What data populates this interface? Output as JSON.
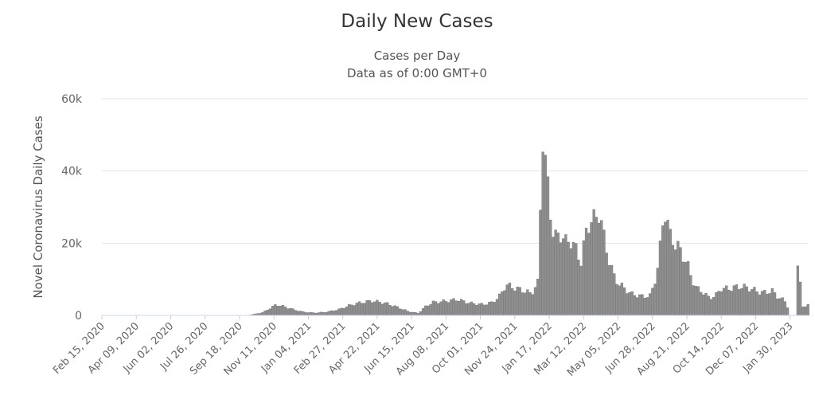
{
  "chart_data": {
    "type": "bar",
    "title": "Daily New Cases",
    "subtitle_lines": [
      "Cases per Day",
      "Data as of 0:00 GMT+0"
    ],
    "ylabel": "Novel Coronavirus Daily Cases",
    "ylim": [
      0,
      60000
    ],
    "yticks": [
      {
        "value": 0,
        "label": "0"
      },
      {
        "value": 20000,
        "label": "20k"
      },
      {
        "value": 40000,
        "label": "40k"
      },
      {
        "value": 60000,
        "label": "60k"
      }
    ],
    "x_start": "Feb 15, 2020",
    "x_end": "Feb 28, 2023",
    "xtick_labels": [
      "Feb 15, 2020",
      "Apr 09, 2020",
      "Jun 02, 2020",
      "Jul 26, 2020",
      "Sep 18, 2020",
      "Nov 11, 2020",
      "Jan 04, 2021",
      "Feb 27, 2021",
      "Apr 22, 2021",
      "Jun 15, 2021",
      "Aug 08, 2021",
      "Oct 01, 2021",
      "Nov 24, 2021",
      "Jan 17, 2022",
      "Mar 12, 2022",
      "May 05, 2022",
      "Jun 28, 2022",
      "Aug 21, 2022",
      "Oct 14, 2022",
      "Dec 07, 2022",
      "Jan 30, 2023"
    ],
    "grid": true,
    "legend": "none",
    "color": "#8f8f8f",
    "series": [
      {
        "points": [
          [
            "Feb 15, 2020",
            0
          ],
          [
            "Oct 01, 2020",
            0
          ],
          [
            "Oct 25, 2020",
            800
          ],
          [
            "Nov 05, 2020",
            2000
          ],
          [
            "Nov 15, 2020",
            3000
          ],
          [
            "Nov 28, 2020",
            2400
          ],
          [
            "Dec 12, 2020",
            1600
          ],
          [
            "Dec 28, 2020",
            900
          ],
          [
            "Jan 15, 2021",
            700
          ],
          [
            "Feb 01, 2021",
            900
          ],
          [
            "Feb 20, 2021",
            1600
          ],
          [
            "Mar 10, 2021",
            2800
          ],
          [
            "Mar 28, 2021",
            3600
          ],
          [
            "Apr 15, 2021",
            4000
          ],
          [
            "May 05, 2021",
            3400
          ],
          [
            "May 25, 2021",
            2200
          ],
          [
            "Jun 10, 2021",
            1100
          ],
          [
            "Jun 25, 2021",
            600
          ],
          [
            "Jul 08, 2021",
            2600
          ],
          [
            "Jul 18, 2021",
            3600
          ],
          [
            "Aug 05, 2021",
            3900
          ],
          [
            "Aug 25, 2021",
            4400
          ],
          [
            "Sep 15, 2021",
            3400
          ],
          [
            "Oct 05, 2021",
            3000
          ],
          [
            "Oct 20, 2021",
            3600
          ],
          [
            "Nov 01, 2021",
            5500
          ],
          [
            "Nov 10, 2021",
            8500
          ],
          [
            "Nov 20, 2021",
            7800
          ],
          [
            "Dec 05, 2021",
            7000
          ],
          [
            "Dec 20, 2021",
            6000
          ],
          [
            "Dec 30, 2021",
            9000
          ],
          [
            "Jan 03, 2022",
            30000
          ],
          [
            "Jan 07, 2022",
            51000
          ],
          [
            "Jan 10, 2022",
            44000
          ],
          [
            "Jan 13, 2022",
            38000
          ],
          [
            "Jan 17, 2022",
            32000
          ],
          [
            "Jan 22, 2022",
            24000
          ],
          [
            "Jan 28, 2022",
            21000
          ],
          [
            "Feb 05, 2022",
            23000
          ],
          [
            "Feb 12, 2022",
            20000
          ],
          [
            "Feb 20, 2022",
            21000
          ],
          [
            "Feb 28, 2022",
            18000
          ],
          [
            "Mar 08, 2022",
            15000
          ],
          [
            "Mar 15, 2022",
            22000
          ],
          [
            "Mar 22, 2022",
            27000
          ],
          [
            "Mar 30, 2022",
            26000
          ],
          [
            "Apr 06, 2022",
            29500
          ],
          [
            "Apr 12, 2022",
            22000
          ],
          [
            "Apr 20, 2022",
            16000
          ],
          [
            "Apr 28, 2022",
            11000
          ],
          [
            "May 05, 2022",
            9000
          ],
          [
            "May 15, 2022",
            7500
          ],
          [
            "May 25, 2022",
            6000
          ],
          [
            "Jun 05, 2022",
            5500
          ],
          [
            "Jun 15, 2022",
            5200
          ],
          [
            "Jun 25, 2022",
            5500
          ],
          [
            "Jul 01, 2022",
            9000
          ],
          [
            "Jul 08, 2022",
            15000
          ],
          [
            "Jul 15, 2022",
            27000
          ],
          [
            "Jul 19, 2022",
            30000
          ],
          [
            "Jul 24, 2022",
            22000
          ],
          [
            "Jul 30, 2022",
            21000
          ],
          [
            "Aug 06, 2022",
            19000
          ],
          [
            "Aug 14, 2022",
            17000
          ],
          [
            "Aug 21, 2022",
            14500
          ],
          [
            "Aug 28, 2022",
            10500
          ],
          [
            "Sep 05, 2022",
            7500
          ],
          [
            "Sep 15, 2022",
            6500
          ],
          [
            "Sep 25, 2022",
            4800
          ],
          [
            "Oct 05, 2022",
            5500
          ],
          [
            "Oct 14, 2022",
            7500
          ],
          [
            "Oct 25, 2022",
            7300
          ],
          [
            "Nov 05, 2022",
            7800
          ],
          [
            "Nov 15, 2022",
            8000
          ],
          [
            "Nov 25, 2022",
            7600
          ],
          [
            "Dec 05, 2022",
            7000
          ],
          [
            "Dec 15, 2022",
            6300
          ],
          [
            "Dec 25, 2022",
            6400
          ],
          [
            "Jan 02, 2023",
            6800
          ],
          [
            "Jan 10, 2023",
            5200
          ],
          [
            "Jan 18, 2023",
            4400
          ],
          [
            "Jan 24, 2023",
            3600
          ],
          [
            "Jan 30, 2023",
            0
          ],
          [
            "Feb 07, 2023",
            0
          ],
          [
            "Feb 09, 2023",
            15000
          ],
          [
            "Feb 14, 2023",
            15200
          ],
          [
            "Feb 16, 2023",
            1800
          ],
          [
            "Feb 20, 2023",
            2400
          ],
          [
            "Feb 24, 2023",
            2800
          ],
          [
            "Feb 28, 2023",
            3300
          ]
        ]
      }
    ]
  }
}
